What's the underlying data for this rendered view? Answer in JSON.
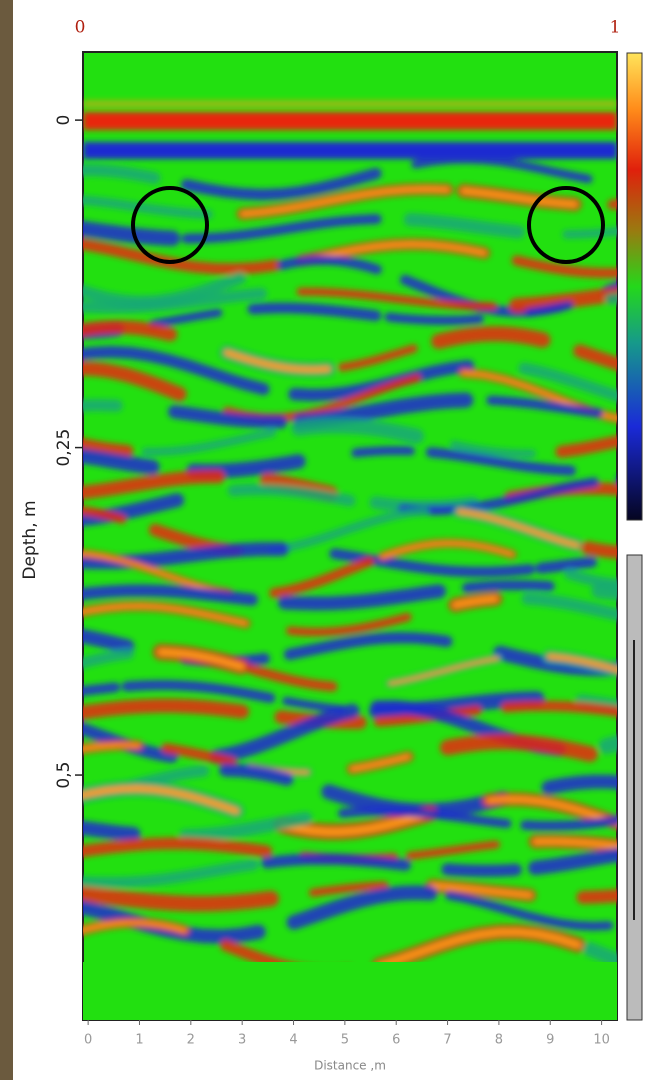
{
  "chart_data": {
    "type": "radargram",
    "top_ticks": [
      0,
      1
    ],
    "ylabel": "Depth, m",
    "xlabel": "Distance ,m",
    "xlim": [
      -0.1,
      10.3
    ],
    "xticks": [
      0,
      1,
      2,
      3,
      4,
      5,
      6,
      7,
      8,
      9,
      10
    ],
    "ylim": [
      -0.052,
      0.687
    ],
    "yticks": [
      0,
      {
        "value": 0.25,
        "label": "0,25"
      },
      {
        "value": 0.5,
        "label": "0,5"
      }
    ]
  }
}
